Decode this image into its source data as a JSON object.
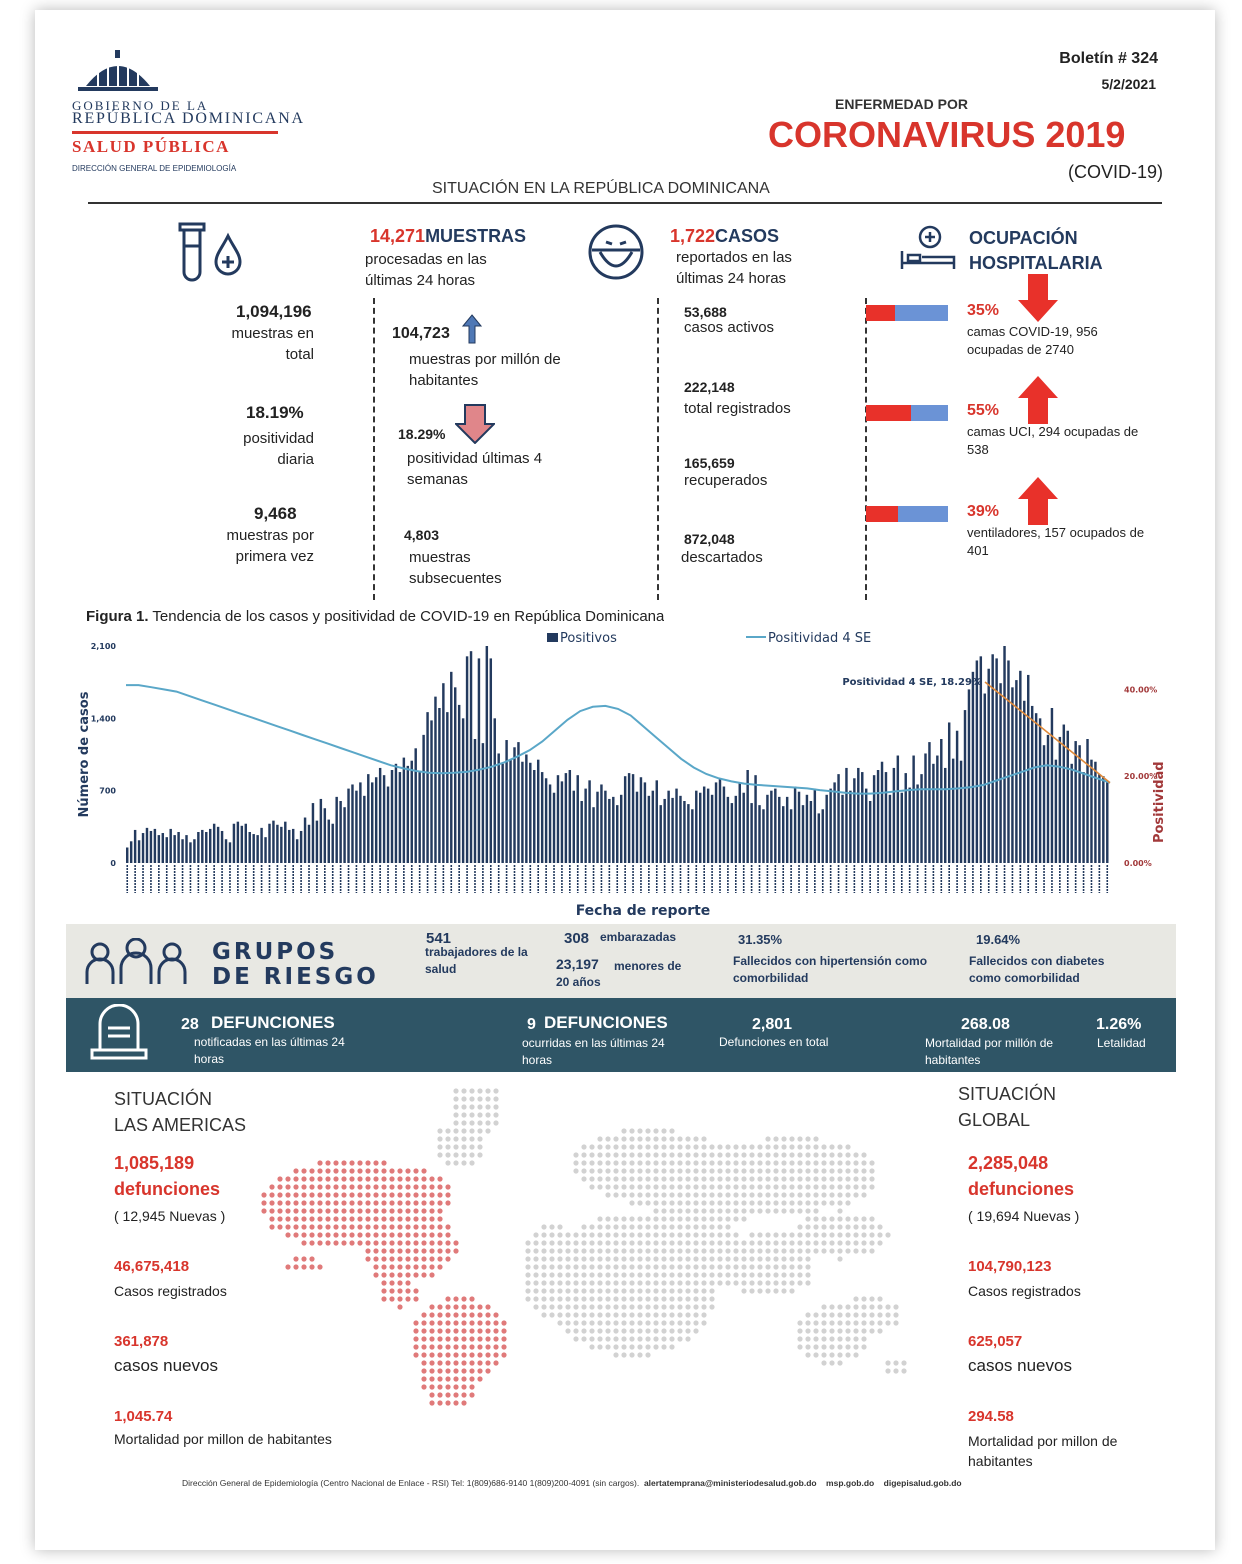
{
  "header": {
    "gov_line1": "GOBIERNO DE LA",
    "gov_line2": "REPÚBLICA DOMINICANA",
    "ministry": "SALUD PÚBLICA",
    "dept": "DIRECCIÓN GENERAL DE EPIDEMIOLOGÍA",
    "bulletin": "Boletín # 324",
    "date": "5/2/2021",
    "disease_pre": "ENFERMEDAD POR",
    "disease": "CORONAVIRUS 2019",
    "disease_code": "(COVID-19)",
    "section_title": "SITUACIÓN EN LA REPÚBLICA DOMINICANA"
  },
  "tests": {
    "headline_num": "14,271",
    "headline_label": "MUESTRAS",
    "headline_sub": "procesadas en las últimas 24 horas",
    "total_num": "1,094,196",
    "total_label": "muestras en total",
    "pos_daily_num": "18.19%",
    "pos_daily_label": "positividad diaria",
    "first_num": "9,468",
    "first_label": "muestras por primera vez",
    "per_million_num": "104,723",
    "per_million_label": "muestras por millón de habitantes",
    "pos4_num": "18.29%",
    "pos4_label": "positividad últimas 4 semanas",
    "subseq_num": "4,803",
    "subseq_label": "muestras subsecuentes"
  },
  "cases": {
    "headline_num": "1,722",
    "headline_label": "CASOS",
    "headline_sub": "reportados en las últimas 24 horas",
    "active_num": "53,688",
    "active_label": "casos activos",
    "total_num": "222,148",
    "total_label": "total registrados",
    "recovered_num": "165,659",
    "recovered_label": "recuperados",
    "discarded_num": "872,048",
    "discarded_label": "descartados"
  },
  "hospital": {
    "title": "OCUPACIÓN HOSPITALARIA",
    "items": [
      {
        "pct": "35%",
        "label": "camas COVID-19,  956 ocupadas de 2740",
        "fill": 0.35,
        "trend": "down"
      },
      {
        "pct": "55%",
        "label": "camas UCI,  294 ocupadas de 538",
        "fill": 0.55,
        "trend": "up"
      },
      {
        "pct": "39%",
        "label": "ventiladores, 157 ocupados de 401",
        "fill": 0.39,
        "trend": "up"
      }
    ]
  },
  "figure": {
    "caption_bold": "Figura 1.",
    "caption": "Tendencia de los casos y positividad de COVID-19 en República Dominicana"
  },
  "chart_data": {
    "type": "bar",
    "title": "",
    "xlabel": "Fecha de reporte",
    "ylabel": "Número de casos",
    "y2label": "Positividad",
    "ylim": [
      0,
      2100
    ],
    "y2lim": [
      0,
      0.5
    ],
    "yticks": [
      "0",
      "700",
      "1,400",
      "2,100"
    ],
    "y2ticks": [
      "0.00%",
      "20.00%",
      "40.00%"
    ],
    "annotation": "Positividad 4 SE, 18.29%",
    "series": [
      {
        "name": "Positivos",
        "type": "bar",
        "color": "#233a5e",
        "values": [
          150,
          210,
          320,
          220,
          290,
          340,
          310,
          330,
          270,
          290,
          250,
          330,
          270,
          300,
          230,
          270,
          200,
          230,
          300,
          320,
          300,
          330,
          380,
          350,
          310,
          230,
          200,
          380,
          400,
          360,
          380,
          300,
          280,
          270,
          340,
          250,
          380,
          410,
          370,
          350,
          400,
          320,
          330,
          230,
          310,
          440,
          370,
          580,
          410,
          620,
          530,
          420,
          380,
          640,
          600,
          540,
          720,
          760,
          700,
          780,
          650,
          860,
          780,
          830,
          920,
          850,
          740,
          900,
          960,
          880,
          1020,
          940,
          990,
          1110,
          880,
          1240,
          1460,
          1380,
          1610,
          1500,
          1740,
          1460,
          1850,
          1700,
          1530,
          1400,
          2000,
          2050,
          1200,
          1980,
          1160,
          2100,
          1980,
          1400,
          1060,
          960,
          1190,
          1000,
          1120,
          1170,
          980,
          1050,
          970,
          900,
          1000,
          880,
          820,
          760,
          680,
          850,
          790,
          870,
          900,
          700,
          850,
          600,
          720,
          800,
          540,
          690,
          760,
          700,
          620,
          640,
          560,
          660,
          840,
          870,
          860,
          690,
          830,
          780,
          650,
          700,
          800,
          560,
          620,
          700,
          630,
          720,
          650,
          600,
          570,
          520,
          700,
          680,
          740,
          720,
          660,
          780,
          820,
          740,
          640,
          580,
          650,
          770,
          680,
          900,
          580,
          850,
          560,
          520,
          660,
          700,
          720,
          640,
          550,
          640,
          520,
          740,
          690,
          560,
          660,
          600,
          720,
          480,
          520,
          660,
          720,
          780,
          860,
          660,
          920,
          700,
          820,
          920,
          880,
          720,
          600,
          850,
          900,
          980,
          880,
          660,
          920,
          1040,
          680,
          870,
          730,
          1040,
          760,
          860,
          1060,
          1170,
          960,
          1040,
          1200,
          920,
          1360,
          1010,
          1280,
          990,
          1480,
          1680,
          1850,
          1960,
          2000,
          1640,
          1880,
          2020,
          1980,
          1740,
          2100,
          1960,
          1700,
          1770,
          1860,
          1570,
          1820,
          1520,
          1450,
          1400,
          1140,
          1240,
          1500,
          1000,
          1220,
          1340,
          1280,
          960,
          1180,
          1140,
          880,
          1200,
          1000,
          980,
          860,
          840,
          780
        ]
      },
      {
        "name": "Positividad 4 SE",
        "type": "line",
        "color": "#5aa7c8",
        "values": [
          0.41,
          0.41,
          0.405,
          0.4,
          0.395,
          0.385,
          0.375,
          0.365,
          0.355,
          0.345,
          0.335,
          0.325,
          0.315,
          0.305,
          0.295,
          0.285,
          0.275,
          0.265,
          0.255,
          0.245,
          0.235,
          0.225,
          0.218,
          0.212,
          0.208,
          0.207,
          0.208,
          0.21,
          0.215,
          0.222,
          0.232,
          0.245,
          0.26,
          0.28,
          0.305,
          0.33,
          0.35,
          0.36,
          0.362,
          0.355,
          0.34,
          0.315,
          0.29,
          0.265,
          0.24,
          0.22,
          0.205,
          0.195,
          0.188,
          0.183,
          0.18,
          0.178,
          0.176,
          0.174,
          0.172,
          0.168,
          0.165,
          0.162,
          0.16,
          0.16,
          0.162,
          0.165,
          0.168,
          0.17,
          0.17,
          0.17,
          0.172,
          0.175,
          0.18,
          0.19,
          0.2,
          0.21,
          0.22,
          0.225,
          0.222,
          0.215,
          0.205,
          0.195,
          0.185
        ]
      }
    ]
  },
  "risk_groups": {
    "title_line1": "GRUPOS",
    "title_line2": "DE RIESGO",
    "health_workers_num": "541",
    "health_workers_label": "trabajadores de la salud",
    "pregnant_num": "308",
    "pregnant_label": "embarazadas",
    "minors_num": "23,197",
    "minors_label": "menores de 20 años",
    "hypertension_num": "31.35%",
    "hypertension_label": "Fallecidos con hipertensión como comorbilidad",
    "diabetes_num": "19.64%",
    "diabetes_label": "Fallecidos con diabetes como comorbilidad"
  },
  "deaths": {
    "notified_num": "28",
    "notified_title": "DEFUNCIONES",
    "notified_label": "notificadas en las últimas 24 horas",
    "occurred_num": "9",
    "occurred_title": "DEFUNCIONES",
    "occurred_label": "ocurridas en las últimas 24 horas",
    "total_num": "2,801",
    "total_label": "Defunciones en total",
    "mortality_num": "268.08",
    "mortality_label": "Mortalidad por millón de habitantes",
    "lethality_num": "1.26%",
    "lethality_label": "Letalidad"
  },
  "americas": {
    "title_line1": "SITUACIÓN",
    "title_line2": "LAS AMERICAS",
    "deaths_num": "1,085,189",
    "deaths_label": "defunciones",
    "deaths_new": "( 12,945 Nuevas )",
    "cases_num": "46,675,418",
    "cases_label": "Casos registrados",
    "new_num": "361,878",
    "new_label": "casos nuevos",
    "mort_num": "1,045.74",
    "mort_label": "Mortalidad por millon de habitantes"
  },
  "global": {
    "title_line1": "SITUACIÓN",
    "title_line2": "GLOBAL",
    "deaths_num": "2,285,048",
    "deaths_label": "defunciones",
    "deaths_new": "( 19,694 Nuevas )",
    "cases_num": "104,790,123",
    "cases_label": "Casos registrados",
    "new_num": "625,057",
    "new_label": "casos nuevos",
    "mort_num": "294.58",
    "mort_label": "Mortalidad por millon de habitantes"
  },
  "footer": {
    "text": "Dirección General de Epidemiología (Centro Nacional de Enlace - RSI) Tel: 1(809)686-9140   1(809)200-4091 (sin cargos).",
    "email": "alertatemprana@ministeriodesalud.gob.do",
    "site1": "msp.gob.do",
    "site2": "digepisalud.gob.do"
  },
  "colors": {
    "accent_red": "#d8352c",
    "navy": "#233a5e",
    "teal_band": "#2f5566",
    "risk_band": "#e8e8e3",
    "bar_blue": "#6b93d6",
    "line": "#5aa7c8"
  }
}
